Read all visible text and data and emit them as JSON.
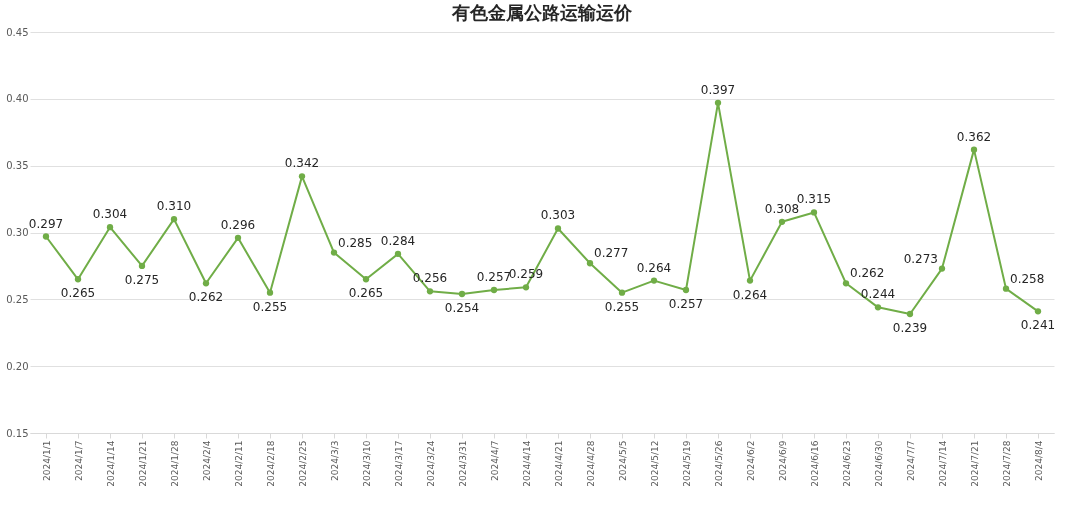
{
  "chart_data": {
    "type": "line",
    "title": "有色金属公路运输运价",
    "categories": [
      "2024/1/1",
      "2024/1/7",
      "2024/1/14",
      "2024/1/21",
      "2024/1/28",
      "2024/2/4",
      "2024/2/11",
      "2024/2/18",
      "2024/2/25",
      "2024/3/3",
      "2024/3/10",
      "2024/3/17",
      "2024/3/24",
      "2024/3/31",
      "2024/4/7",
      "2024/4/14",
      "2024/4/21",
      "2024/4/28",
      "2024/5/5",
      "2024/5/12",
      "2024/5/19",
      "2024/5/26",
      "2024/6/2",
      "2024/6/9",
      "2024/6/16",
      "2024/6/23",
      "2024/6/30",
      "2024/7/7",
      "2024/7/14",
      "2024/7/21",
      "2024/7/28",
      "2024/8/4"
    ],
    "series": [
      {
        "color": "#70ad47",
        "values": [
          0.297,
          0.265,
          0.304,
          0.275,
          0.31,
          0.262,
          0.296,
          0.255,
          0.342,
          0.285,
          0.265,
          0.284,
          0.256,
          0.254,
          0.257,
          0.259,
          0.303,
          0.277,
          0.255,
          0.264,
          0.257,
          0.397,
          0.264,
          0.308,
          0.315,
          0.262,
          0.244,
          0.239,
          0.273,
          0.362,
          0.258,
          0.241
        ],
        "value_labels": [
          "0.297",
          "0.265",
          "0.304",
          "0.275",
          "0.310",
          "0.262",
          "0.296",
          "0.255",
          "0.342",
          "0.285",
          "0.265",
          "0.284",
          "0.256",
          "0.254",
          "0.257",
          "0.259",
          "0.303",
          "0.277",
          "0.255",
          "0.264",
          "0.257",
          "0.397",
          "0.264",
          "0.308",
          "0.315",
          "0.262",
          "0.244",
          "0.239",
          "0.273",
          "0.362",
          "0.258",
          "0.241"
        ]
      }
    ],
    "ylim": [
      0.15,
      0.45
    ],
    "yticks": [
      {
        "value": 0.15,
        "label": "0.15"
      },
      {
        "value": 0.2,
        "label": "0.20"
      },
      {
        "value": 0.25,
        "label": "0.25"
      },
      {
        "value": 0.3,
        "label": "0.30"
      },
      {
        "value": 0.35,
        "label": "0.35"
      },
      {
        "value": 0.4,
        "label": "0.40"
      },
      {
        "value": 0.45,
        "label": "0.45"
      }
    ],
    "grid": "y",
    "marker": "circle",
    "line_style": "solid"
  }
}
